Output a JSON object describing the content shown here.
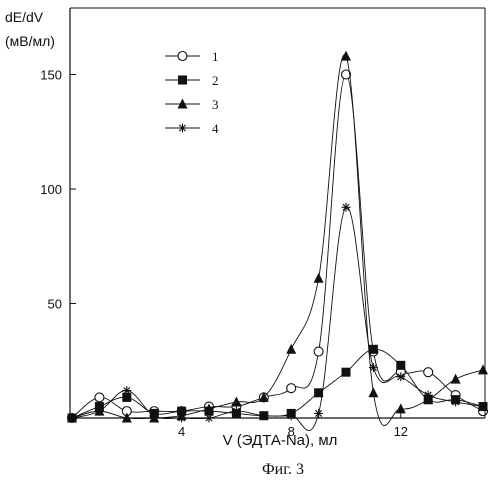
{
  "chart_data": {
    "type": "line",
    "ylabel_line1": "dE/dV",
    "ylabel_line2": "(мВ/мл)",
    "xlabel": "V (ЭДТА-Na), мл",
    "caption": "Фиг. 3",
    "xlim": [
      0,
      15
    ],
    "ylim": [
      0,
      160
    ],
    "xticks": [
      4,
      8,
      12
    ],
    "yticks": [
      50,
      100,
      150
    ],
    "legend_position": "top-left",
    "series": [
      {
        "name": "1",
        "marker": "circle-open",
        "x": [
          0,
          1,
          2,
          3,
          4,
          5,
          6,
          7,
          8,
          9,
          10,
          11,
          12,
          13,
          14,
          15
        ],
        "y": [
          0,
          9,
          3,
          3,
          3,
          5,
          5,
          9,
          13,
          29,
          150,
          29,
          20,
          20,
          10,
          3
        ]
      },
      {
        "name": "2",
        "marker": "square-filled",
        "x": [
          0,
          1,
          2,
          3,
          4,
          5,
          6,
          7,
          8,
          9,
          10,
          11,
          12,
          13,
          14,
          15
        ],
        "y": [
          0,
          5,
          9,
          2,
          3,
          3,
          2,
          1,
          2,
          11,
          20,
          30,
          23,
          8,
          8,
          5
        ]
      },
      {
        "name": "3",
        "marker": "triangle-filled",
        "x": [
          0,
          1,
          2,
          3,
          4,
          5,
          6,
          7,
          8,
          9,
          10,
          11,
          12,
          13,
          14,
          15
        ],
        "y": [
          0,
          3,
          0,
          0,
          1,
          4,
          7,
          9,
          30,
          61,
          158,
          11,
          4,
          8,
          17,
          21
        ]
      },
      {
        "name": "4",
        "marker": "asterisk",
        "x": [
          0,
          1,
          2,
          3,
          4,
          5,
          6,
          7,
          8,
          9,
          10,
          11,
          12,
          13,
          14,
          15
        ],
        "y": [
          0,
          3,
          12,
          1,
          0,
          0,
          3,
          1,
          1,
          2,
          92,
          22,
          18,
          10,
          7,
          5
        ]
      }
    ]
  }
}
